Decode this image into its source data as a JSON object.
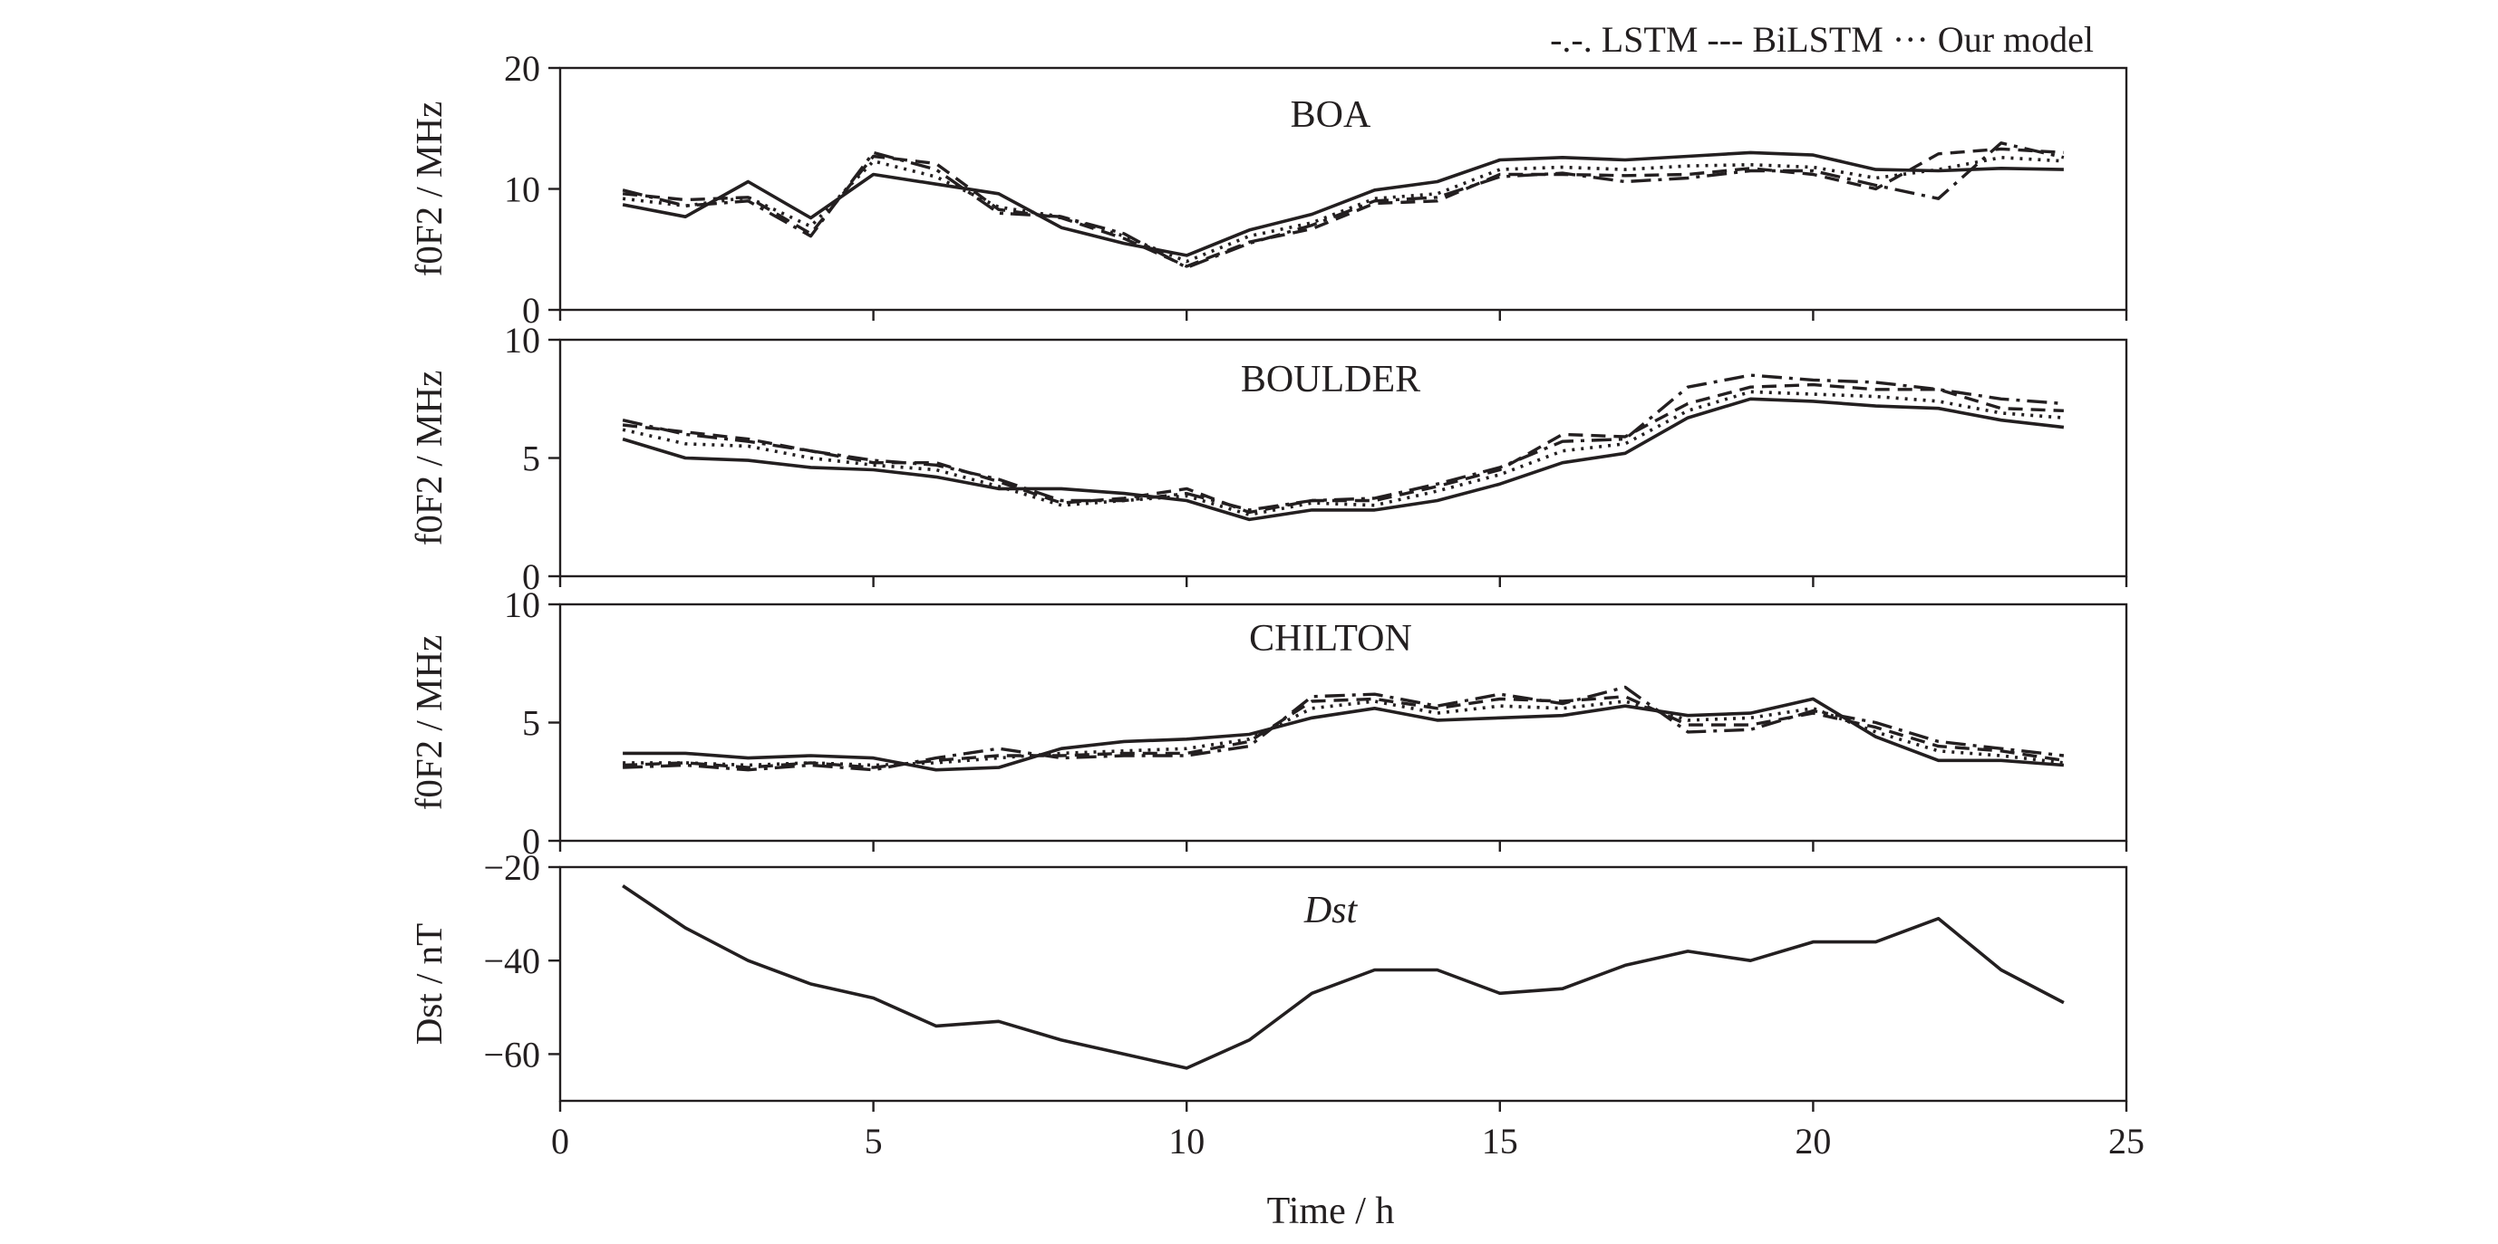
{
  "legend": {
    "text": "-.-. LSTM --- BiLSTM ··· Our model"
  },
  "x_axis": {
    "label": "Time / h",
    "range": [
      0,
      25
    ],
    "ticks": [
      0,
      5,
      10,
      15,
      20,
      25
    ],
    "tick_labels": [
      "0",
      "5",
      "10",
      "15",
      "20",
      "25"
    ]
  },
  "chart_data": [
    {
      "type": "line",
      "title": "BOA",
      "ylabel": "f0F2 / MHz",
      "ylim": [
        0,
        20
      ],
      "yticks": [
        0,
        10,
        20
      ],
      "ytick_labels": [
        "0",
        "10",
        "20"
      ],
      "x": [
        1,
        2,
        3,
        4,
        5,
        6,
        7,
        8,
        9,
        10,
        11,
        12,
        13,
        14,
        15,
        16,
        17,
        18,
        19,
        20,
        21,
        22,
        23,
        24
      ],
      "series": [
        {
          "values": [
            8.7,
            7.7,
            10.6,
            7.6,
            11.2,
            10.4,
            9.6,
            6.8,
            5.5,
            4.5,
            6.6,
            7.9,
            9.9,
            10.6,
            12.4,
            12.6,
            12.4,
            12.7,
            13.0,
            12.8,
            11.6,
            11.5,
            11.7,
            11.6
          ],
          "style": "solid"
        },
        {
          "name": "LSTM",
          "values": [
            9.9,
            8.6,
            9.0,
            6.1,
            13.0,
            11.6,
            8.0,
            7.7,
            6.3,
            3.5,
            5.5,
            7.0,
            9.0,
            9.3,
            11.0,
            11.3,
            10.6,
            10.9,
            11.5,
            11.5,
            10.3,
            9.2,
            13.8,
            12.6
          ],
          "style": "dashdot"
        },
        {
          "name": "BiLSTM",
          "values": [
            9.6,
            9.1,
            9.3,
            6.3,
            12.7,
            12.1,
            8.3,
            7.6,
            5.9,
            3.6,
            5.6,
            6.7,
            8.8,
            9.0,
            11.2,
            11.2,
            11.1,
            11.2,
            11.7,
            11.2,
            10.0,
            12.9,
            13.3,
            13.0
          ],
          "style": "dashed"
        },
        {
          "name": "Our model",
          "values": [
            9.2,
            8.6,
            9.3,
            6.9,
            12.3,
            11.0,
            8.5,
            7.7,
            6.1,
            4.0,
            6.1,
            7.2,
            9.2,
            9.6,
            11.6,
            11.8,
            11.6,
            11.9,
            12.0,
            11.8,
            10.9,
            11.6,
            12.6,
            12.3
          ],
          "style": "dotted"
        }
      ]
    },
    {
      "type": "line",
      "title": "BOULDER",
      "ylabel": "f0F2 / MHz",
      "ylim": [
        0,
        10
      ],
      "yticks": [
        0,
        5,
        10
      ],
      "ytick_labels": [
        "0",
        "5",
        "10"
      ],
      "x": [
        1,
        2,
        3,
        4,
        5,
        6,
        7,
        8,
        9,
        10,
        11,
        12,
        13,
        14,
        15,
        16,
        17,
        18,
        19,
        20,
        21,
        22,
        23,
        24
      ],
      "series": [
        {
          "values": [
            5.8,
            5.0,
            4.9,
            4.6,
            4.5,
            4.2,
            3.7,
            3.7,
            3.5,
            3.2,
            2.4,
            2.8,
            2.8,
            3.2,
            3.9,
            4.8,
            5.2,
            6.7,
            7.5,
            7.4,
            7.2,
            7.1,
            6.6,
            6.3
          ],
          "style": "solid"
        },
        {
          "name": "LSTM",
          "values": [
            6.6,
            6.0,
            5.7,
            5.3,
            4.9,
            4.7,
            4.1,
            3.2,
            3.2,
            3.5,
            2.8,
            3.2,
            3.3,
            3.9,
            4.6,
            5.7,
            5.8,
            8.0,
            8.5,
            8.3,
            8.2,
            7.9,
            7.5,
            7.3
          ],
          "style": "dashdot"
        },
        {
          "name": "BiLSTM",
          "values": [
            6.4,
            6.1,
            5.8,
            5.3,
            4.8,
            4.8,
            4.0,
            3.1,
            3.3,
            3.7,
            2.7,
            3.2,
            3.2,
            3.8,
            4.5,
            6.0,
            5.9,
            7.3,
            8.0,
            8.1,
            7.9,
            7.9,
            7.1,
            7.0
          ],
          "style": "dashed"
        },
        {
          "name": "Our model",
          "values": [
            6.2,
            5.6,
            5.5,
            5.0,
            4.7,
            4.5,
            3.8,
            3.0,
            3.2,
            3.4,
            2.6,
            3.1,
            3.0,
            3.6,
            4.3,
            5.3,
            5.6,
            7.0,
            7.8,
            7.7,
            7.6,
            7.4,
            6.9,
            6.7
          ],
          "style": "dotted"
        }
      ]
    },
    {
      "type": "line",
      "title": "CHILTON",
      "ylabel": "f0F2 / MHz",
      "ylim": [
        0,
        10
      ],
      "yticks": [
        0,
        5,
        10
      ],
      "ytick_labels": [
        "0",
        "5",
        "10"
      ],
      "x": [
        1,
        2,
        3,
        4,
        5,
        6,
        7,
        8,
        9,
        10,
        11,
        12,
        13,
        14,
        15,
        16,
        17,
        18,
        19,
        20,
        21,
        22,
        23,
        24
      ],
      "series": [
        {
          "values": [
            3.7,
            3.7,
            3.5,
            3.6,
            3.5,
            3.0,
            3.1,
            3.9,
            4.2,
            4.3,
            4.5,
            5.2,
            5.6,
            5.1,
            5.2,
            5.3,
            5.7,
            5.3,
            5.4,
            6.0,
            4.4,
            3.4,
            3.4,
            3.2
          ],
          "style": "solid"
        },
        {
          "name": "LSTM",
          "values": [
            3.1,
            3.2,
            3.0,
            3.2,
            3.0,
            3.5,
            3.9,
            3.5,
            3.6,
            3.6,
            4.0,
            6.1,
            6.2,
            5.7,
            6.2,
            5.8,
            6.5,
            4.6,
            4.7,
            5.5,
            5.0,
            4.2,
            3.9,
            3.6
          ],
          "style": "dashdot"
        },
        {
          "name": "BiLSTM",
          "values": [
            3.2,
            3.3,
            3.1,
            3.3,
            3.1,
            3.4,
            3.6,
            3.6,
            3.7,
            3.7,
            4.2,
            5.9,
            6.0,
            5.6,
            6.0,
            5.9,
            6.1,
            4.9,
            4.9,
            5.4,
            4.8,
            4.0,
            3.8,
            3.4
          ],
          "style": "dashed"
        },
        {
          "name": "Our model",
          "values": [
            3.3,
            3.3,
            3.2,
            3.3,
            3.2,
            3.3,
            3.5,
            3.7,
            3.8,
            3.9,
            4.3,
            5.6,
            5.9,
            5.4,
            5.7,
            5.6,
            5.9,
            5.1,
            5.2,
            5.6,
            4.6,
            3.8,
            3.6,
            3.3
          ],
          "style": "dotted"
        }
      ]
    },
    {
      "type": "line",
      "title": "Dst",
      "ylabel": "Dst / nT",
      "ylim": [
        -70,
        -20
      ],
      "yticks": [
        -60,
        -40,
        -20
      ],
      "ytick_labels": [
        "−60",
        "−40",
        "−20"
      ],
      "x": [
        1,
        2,
        3,
        4,
        5,
        6,
        7,
        8,
        9,
        10,
        11,
        12,
        13,
        14,
        15,
        16,
        17,
        18,
        19,
        20,
        21,
        22,
        23,
        24
      ],
      "series": [
        {
          "values": [
            -24,
            -33,
            -40,
            -45,
            -48,
            -54,
            -53,
            -57,
            -60,
            -63,
            -57,
            -47,
            -42,
            -42,
            -47,
            -46,
            -41,
            -38,
            -40,
            -36,
            -36,
            -31,
            -42,
            -49
          ],
          "style": "solid"
        }
      ]
    }
  ]
}
